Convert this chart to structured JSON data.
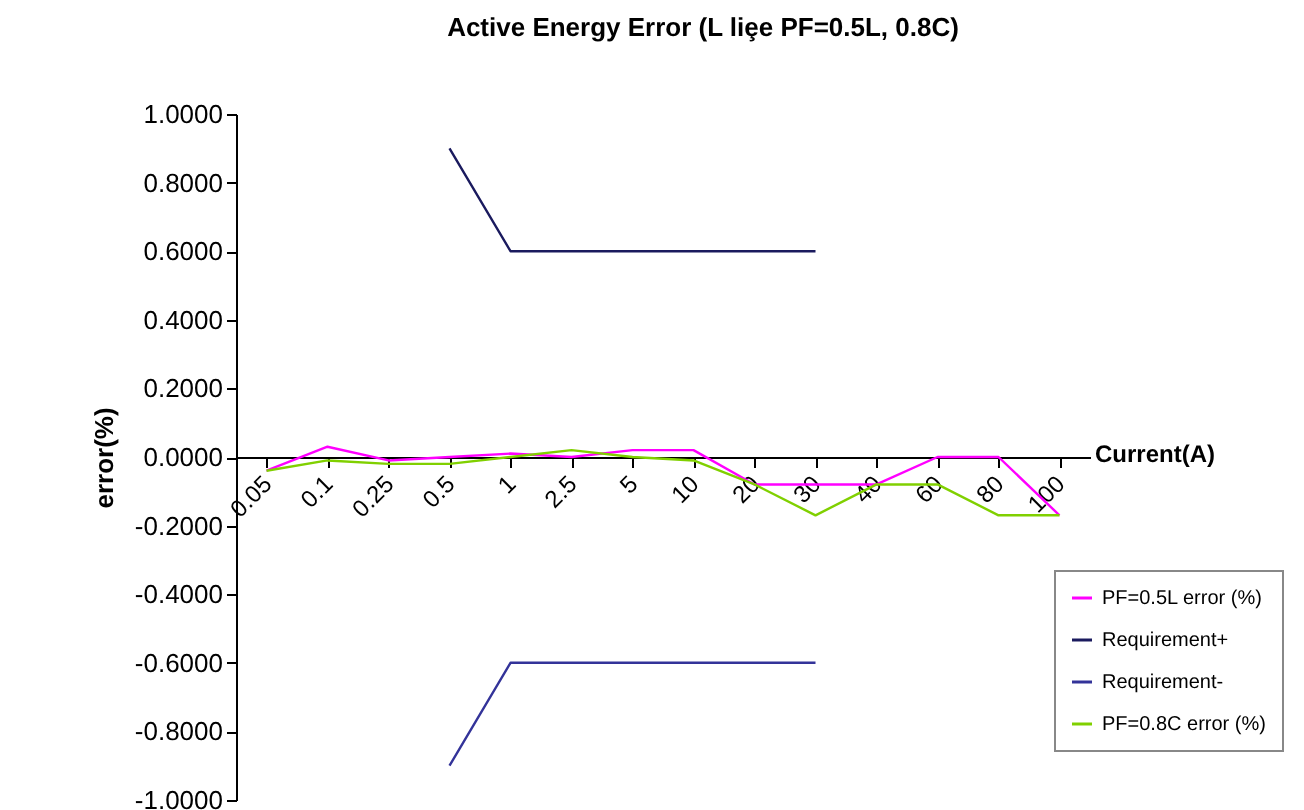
{
  "chart_data": {
    "type": "line",
    "title": "Active Energy Error (L liȩe     PF=0.5L, 0.8C)",
    "xlabel": "Current(A)",
    "ylabel": "error(%)",
    "categories": [
      "0.05",
      "0.1",
      "0.25",
      "0.5",
      "1",
      "2.5",
      "5",
      "10",
      "20",
      "30",
      "40",
      "60",
      "80",
      "100"
    ],
    "series": [
      {
        "name": "PF=0.5L error (%)",
        "color": "#ff00ff",
        "values": [
          -0.04,
          0.03,
          -0.01,
          0,
          0.01,
          0,
          0.02,
          0.02,
          -0.08,
          -0.08,
          -0.08,
          0,
          0,
          -0.17
        ]
      },
      {
        "name": "Requirement+",
        "color": "#1a1a5e",
        "values": [
          null,
          null,
          null,
          0.9,
          0.6,
          0.6,
          0.6,
          0.6,
          0.6,
          0.6,
          null,
          null,
          null,
          null
        ]
      },
      {
        "name": "Requirement-",
        "color": "#333399",
        "values": [
          null,
          null,
          null,
          -0.9,
          -0.6,
          -0.6,
          -0.6,
          -0.6,
          -0.6,
          -0.6,
          null,
          null,
          null,
          null
        ]
      },
      {
        "name": "PF=0.8C error (%)",
        "color": "#80d000",
        "values": [
          -0.04,
          -0.01,
          -0.02,
          -0.02,
          0,
          0.02,
          0,
          -0.01,
          -0.08,
          -0.17,
          -0.08,
          -0.08,
          -0.17,
          -0.17
        ]
      }
    ],
    "ylim": [
      -1,
      1
    ],
    "yticks": [
      {
        "value": -1,
        "label": "-1.0000"
      },
      {
        "value": -0.8,
        "label": "-0.8000"
      },
      {
        "value": -0.6,
        "label": "-0.6000"
      },
      {
        "value": -0.4,
        "label": "-0.4000"
      },
      {
        "value": -0.2,
        "label": "-0.2000"
      },
      {
        "value": 0,
        "label": "0.0000"
      },
      {
        "value": 0.2,
        "label": "0.2000"
      },
      {
        "value": 0.4,
        "label": "0.4000"
      },
      {
        "value": 0.6,
        "label": "0.6000"
      },
      {
        "value": 0.8,
        "label": "0.8000"
      },
      {
        "value": 1,
        "label": "1.0000"
      }
    ],
    "grid": false,
    "legend": "bottom right",
    "marker": "none",
    "line_style": "solid"
  }
}
